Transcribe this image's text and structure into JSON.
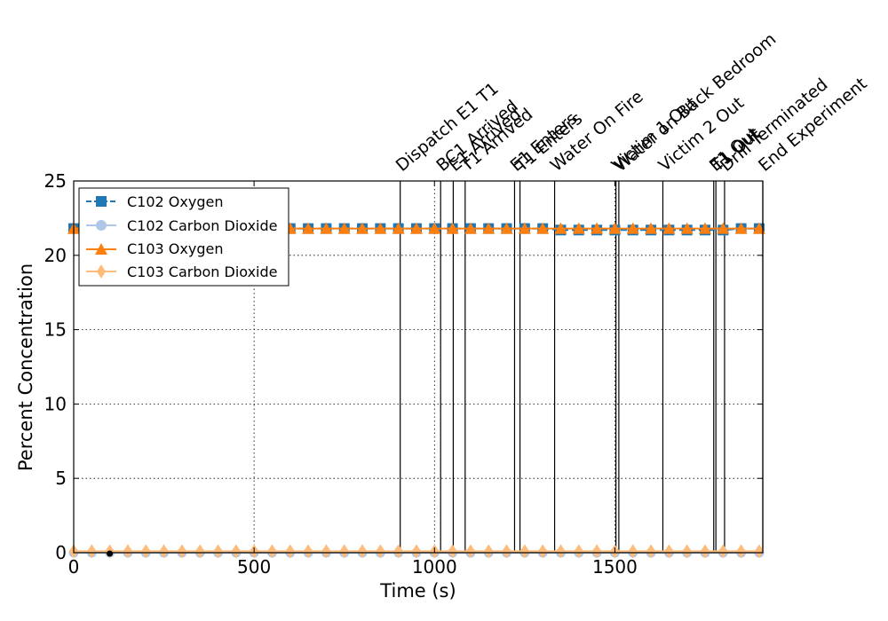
{
  "chart_data": {
    "type": "line",
    "title": "",
    "xlabel": "Time (s)",
    "ylabel": "Percent Concentration",
    "xlim": [
      0,
      1910
    ],
    "ylim": [
      0,
      25
    ],
    "xticks": [
      0,
      500,
      1000,
      1500
    ],
    "yticks": [
      0,
      5,
      10,
      15,
      20,
      25
    ],
    "grid": true,
    "legend_position": "upper-left",
    "marker_x": [
      0,
      50,
      100,
      150,
      200,
      250,
      300,
      350,
      400,
      450,
      500,
      550,
      600,
      650,
      700,
      750,
      800,
      850,
      900,
      950,
      1000,
      1050,
      1100,
      1150,
      1200,
      1250,
      1300,
      1350,
      1400,
      1450,
      1500,
      1550,
      1600,
      1650,
      1700,
      1750,
      1800,
      1850,
      1900
    ],
    "series": [
      {
        "name": "C102 Oxygen",
        "color": "#1f77b4",
        "marker": "square",
        "linestyle": "dashed",
        "values": [
          21.8,
          21.8,
          21.8,
          21.8,
          21.8,
          21.8,
          21.8,
          21.8,
          21.8,
          21.8,
          21.8,
          21.8,
          21.8,
          21.8,
          21.8,
          21.8,
          21.8,
          21.8,
          21.8,
          21.8,
          21.8,
          21.8,
          21.8,
          21.8,
          21.8,
          21.8,
          21.8,
          21.7,
          21.7,
          21.7,
          21.7,
          21.7,
          21.7,
          21.7,
          21.7,
          21.7,
          21.7,
          21.8,
          21.8
        ]
      },
      {
        "name": "C102 Carbon Dioxide",
        "color": "#aec7e8",
        "marker": "circle",
        "linestyle": "solid",
        "values": [
          0,
          0,
          0,
          0,
          0,
          0,
          0,
          0,
          0,
          0,
          0,
          0,
          0,
          0,
          0,
          0,
          0,
          0,
          0,
          0,
          0,
          0,
          0,
          0,
          0,
          0,
          0,
          0,
          0,
          0,
          0,
          0,
          0,
          0,
          0,
          0,
          0,
          0,
          0
        ]
      },
      {
        "name": "C103 Oxygen",
        "color": "#ff7f0e",
        "marker": "triangle",
        "linestyle": "solid",
        "values": [
          21.8,
          21.8,
          21.8,
          21.8,
          21.8,
          21.8,
          21.8,
          21.8,
          21.8,
          21.8,
          21.8,
          21.8,
          21.8,
          21.8,
          21.8,
          21.8,
          21.8,
          21.8,
          21.8,
          21.8,
          21.8,
          21.8,
          21.8,
          21.8,
          21.8,
          21.8,
          21.8,
          21.8,
          21.8,
          21.8,
          21.8,
          21.8,
          21.8,
          21.8,
          21.8,
          21.8,
          21.8,
          21.8,
          21.8
        ]
      },
      {
        "name": "C103 Carbon Dioxide",
        "color": "#ffbb78",
        "marker": "diamond",
        "linestyle": "solid",
        "values": [
          0.1,
          0.1,
          0.1,
          0.1,
          0.1,
          0.1,
          0.1,
          0.1,
          0.1,
          0.1,
          0.1,
          0.1,
          0.1,
          0.1,
          0.1,
          0.1,
          0.1,
          0.1,
          0.1,
          0.1,
          0.1,
          0.1,
          0.1,
          0.1,
          0.1,
          0.1,
          0.1,
          0.1,
          0.1,
          0.1,
          0.1,
          0.1,
          0.1,
          0.1,
          0.1,
          0.1,
          0.1,
          0.1,
          0.1
        ]
      }
    ],
    "events": [
      {
        "label": "Dispatch E1 T1",
        "time": 905
      },
      {
        "label": "BC1 Arrived",
        "time": 1017
      },
      {
        "label": "E1 Arrived",
        "time": 1052
      },
      {
        "label": "T1 Arrived",
        "time": 1085
      },
      {
        "label": "E1 Enters",
        "time": 1222
      },
      {
        "label": "T1 Enters",
        "time": 1237
      },
      {
        "label": "Water On Fire",
        "time": 1333
      },
      {
        "label": "Victim 1 Out",
        "time": 1503
      },
      {
        "label": "Water on Back Bedroom",
        "time": 1511
      },
      {
        "label": "Victim 2 Out",
        "time": 1633
      },
      {
        "label": "E1 Out",
        "time": 1774
      },
      {
        "label": "T1 Out",
        "time": 1780
      },
      {
        "label": "Drill Terminated",
        "time": 1804
      },
      {
        "label": "End Experiment",
        "time": 1910
      }
    ],
    "extra_points": [
      {
        "x": 100,
        "y": 0,
        "color": "#000000"
      }
    ]
  }
}
